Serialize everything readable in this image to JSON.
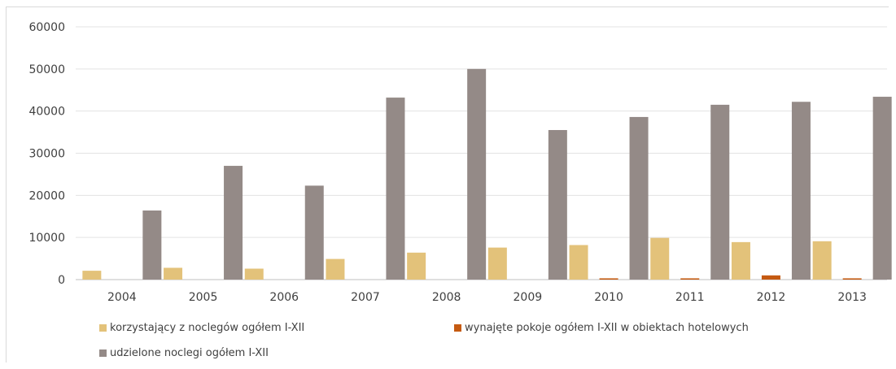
{
  "chart_data": {
    "type": "bar",
    "title": "",
    "xlabel": "",
    "ylabel": "",
    "ylim": [
      0,
      60000
    ],
    "yticks": [
      0,
      10000,
      20000,
      30000,
      40000,
      50000,
      60000
    ],
    "ytick_labels": [
      "0",
      "10000",
      "20000",
      "30000",
      "40000",
      "50000",
      "60000"
    ],
    "grid": true,
    "legend_position": "bottom",
    "categories": [
      "2004",
      "2005",
      "2006",
      "2007",
      "2008",
      "2009",
      "2010",
      "2011",
      "2012",
      "2013"
    ],
    "series": [
      {
        "name": "korzystający z noclegów ogółem I-XII",
        "color": "#e3c27a",
        "values": [
          2100,
          2800,
          2600,
          4900,
          6400,
          7600,
          8200,
          9900,
          8900,
          9100
        ]
      },
      {
        "name": "wynajęte pokoje ogółem I-XII w obiektach hotelowych",
        "color": "#c55a11",
        "values": [
          0,
          0,
          0,
          0,
          0,
          0,
          300,
          300,
          1000,
          300
        ]
      },
      {
        "name": "udzielone noclegi ogółem I-XII",
        "color": "#948a87",
        "values": [
          16400,
          27000,
          22300,
          43200,
          50000,
          35500,
          38600,
          41500,
          42200,
          43400
        ]
      }
    ]
  }
}
